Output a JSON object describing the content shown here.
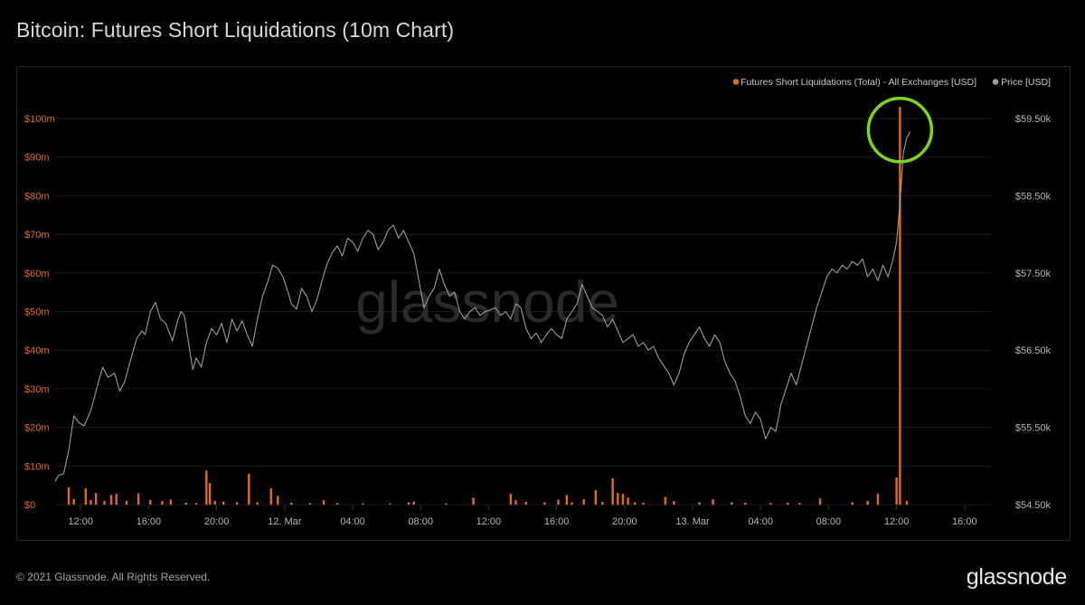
{
  "title": "Bitcoin: Futures Short Liquidations (10m Chart)",
  "footer": {
    "copyright": "© 2021 Glassnode. All Rights Reserved.",
    "logo": "glassnode"
  },
  "watermark": "glassnode",
  "colors": {
    "liquidations": "#e06a1f",
    "price": "#9c9c9c",
    "axis_left_text": "#e06a1f",
    "axis_right_text": "#b5b5b5",
    "grid": "#1a1a1a",
    "highlight_circle": "#7ed321"
  },
  "chart_data": {
    "type": "bar",
    "title": "Bitcoin: Futures Short Liquidations (10m Chart)",
    "legend": {
      "placement": "top-right",
      "entries": [
        {
          "name": "Futures Short Liquidations (Total) - All Exchanges [USD]",
          "color": "#e06a1f"
        },
        {
          "name": "Price [USD]",
          "color": "#9c9c9c"
        }
      ]
    },
    "grid": true,
    "x_axis": {
      "ticks": [
        "12:00",
        "16:00",
        "20:00",
        "12. Mar",
        "04:00",
        "08:00",
        "12:00",
        "16:00",
        "20:00",
        "13. Mar",
        "04:00",
        "08:00",
        "12:00",
        "16:00"
      ],
      "tick_hours": [
        12,
        16,
        20,
        24,
        28,
        32,
        36,
        40,
        44,
        48,
        52,
        56,
        60,
        64
      ],
      "range_hours": [
        10.5,
        65.5
      ]
    },
    "y_left": {
      "label": "",
      "ticks": [
        "$0",
        "$10m",
        "$20m",
        "$30m",
        "$40m",
        "$50m",
        "$60m",
        "$70m",
        "$80m",
        "$90m",
        "$100m"
      ],
      "tick_values": [
        0,
        10,
        20,
        30,
        40,
        50,
        60,
        70,
        80,
        90,
        100
      ],
      "unit": "million USD",
      "range": [
        0,
        100
      ]
    },
    "y_right": {
      "label": "",
      "ticks": [
        "$54.50k",
        "$55.50k",
        "$56.50k",
        "$57.50k",
        "$58.50k",
        "$59.50k"
      ],
      "tick_values": [
        54500,
        55500,
        56500,
        57500,
        58500,
        59500
      ],
      "range": [
        54500,
        59500
      ]
    },
    "annotations": [
      {
        "type": "circle",
        "color": "#7ed321",
        "at_hour": 60.2,
        "at_liquidation": 97
      }
    ],
    "series": [
      {
        "name": "Futures Short Liquidations (Total) - All Exchanges [USD]",
        "type": "bar",
        "unit": "million USD",
        "points": [
          [
            11.3,
            4.5
          ],
          [
            11.6,
            1.5
          ],
          [
            12.3,
            4.2
          ],
          [
            12.6,
            1.2
          ],
          [
            12.9,
            3.0
          ],
          [
            13.4,
            1.0
          ],
          [
            13.8,
            2.5
          ],
          [
            14.1,
            2.8
          ],
          [
            14.7,
            1.0
          ],
          [
            15.4,
            2.9
          ],
          [
            16.1,
            1.2
          ],
          [
            16.8,
            0.9
          ],
          [
            17.3,
            1.3
          ],
          [
            18.2,
            0.5
          ],
          [
            18.8,
            0.4
          ],
          [
            19.4,
            8.8
          ],
          [
            19.6,
            5.6
          ],
          [
            19.9,
            1.0
          ],
          [
            20.4,
            0.8
          ],
          [
            21.2,
            0.6
          ],
          [
            21.9,
            8.0
          ],
          [
            22.4,
            0.6
          ],
          [
            23.2,
            4.2
          ],
          [
            23.6,
            2.3
          ],
          [
            24.4,
            0.5
          ],
          [
            25.5,
            0.4
          ],
          [
            26.3,
            1.2
          ],
          [
            27.1,
            0.4
          ],
          [
            28.6,
            0.3
          ],
          [
            30.2,
            0.3
          ],
          [
            31.3,
            0.6
          ],
          [
            31.6,
            0.8
          ],
          [
            33.5,
            0.3
          ],
          [
            35.1,
            1.8
          ],
          [
            37.3,
            2.8
          ],
          [
            37.6,
            1.2
          ],
          [
            38.2,
            0.7
          ],
          [
            39.3,
            0.6
          ],
          [
            40.1,
            1.3
          ],
          [
            40.6,
            2.5
          ],
          [
            40.9,
            0.6
          ],
          [
            41.6,
            1.4
          ],
          [
            42.3,
            3.8
          ],
          [
            42.7,
            0.7
          ],
          [
            43.3,
            6.8
          ],
          [
            43.6,
            3.0
          ],
          [
            43.9,
            2.8
          ],
          [
            44.2,
            1.8
          ],
          [
            44.6,
            0.6
          ],
          [
            45.1,
            0.5
          ],
          [
            46.4,
            2.0
          ],
          [
            46.9,
            0.9
          ],
          [
            48.4,
            0.6
          ],
          [
            49.2,
            1.4
          ],
          [
            50.3,
            0.6
          ],
          [
            51.1,
            0.5
          ],
          [
            52.6,
            0.4
          ],
          [
            53.6,
            0.5
          ],
          [
            54.3,
            0.4
          ],
          [
            55.5,
            1.6
          ],
          [
            57.4,
            0.6
          ],
          [
            58.3,
            1.0
          ],
          [
            58.9,
            2.8
          ],
          [
            60.0,
            7.0
          ],
          [
            60.2,
            103
          ],
          [
            60.6,
            1.0
          ]
        ]
      },
      {
        "name": "Price [USD]",
        "type": "line",
        "points": [
          [
            10.5,
            54800
          ],
          [
            10.7,
            54880
          ],
          [
            11.0,
            54900
          ],
          [
            11.3,
            55200
          ],
          [
            11.6,
            55650
          ],
          [
            11.9,
            55560
          ],
          [
            12.2,
            55520
          ],
          [
            12.6,
            55720
          ],
          [
            13.0,
            56050
          ],
          [
            13.3,
            56280
          ],
          [
            13.6,
            56150
          ],
          [
            14.0,
            56200
          ],
          [
            14.3,
            55970
          ],
          [
            14.6,
            56100
          ],
          [
            15.0,
            56420
          ],
          [
            15.3,
            56650
          ],
          [
            15.6,
            56750
          ],
          [
            15.8,
            56700
          ],
          [
            16.1,
            57000
          ],
          [
            16.4,
            57120
          ],
          [
            16.7,
            56900
          ],
          [
            17.0,
            56850
          ],
          [
            17.4,
            56620
          ],
          [
            17.7,
            56880
          ],
          [
            17.9,
            57000
          ],
          [
            18.1,
            56950
          ],
          [
            18.4,
            56520
          ],
          [
            18.6,
            56250
          ],
          [
            18.8,
            56400
          ],
          [
            19.1,
            56280
          ],
          [
            19.4,
            56600
          ],
          [
            19.7,
            56780
          ],
          [
            20.0,
            56700
          ],
          [
            20.3,
            56850
          ],
          [
            20.6,
            56600
          ],
          [
            20.9,
            56900
          ],
          [
            21.2,
            56750
          ],
          [
            21.5,
            56880
          ],
          [
            21.8,
            56700
          ],
          [
            22.1,
            56550
          ],
          [
            22.4,
            56900
          ],
          [
            22.7,
            57200
          ],
          [
            23.0,
            57380
          ],
          [
            23.3,
            57600
          ],
          [
            23.6,
            57560
          ],
          [
            23.9,
            57450
          ],
          [
            24.2,
            57250
          ],
          [
            24.4,
            57100
          ],
          [
            24.7,
            57030
          ],
          [
            25.0,
            57300
          ],
          [
            25.3,
            57200
          ],
          [
            25.6,
            57000
          ],
          [
            25.9,
            57150
          ],
          [
            26.2,
            57400
          ],
          [
            26.5,
            57620
          ],
          [
            26.8,
            57760
          ],
          [
            27.1,
            57850
          ],
          [
            27.4,
            57720
          ],
          [
            27.7,
            57950
          ],
          [
            28.0,
            57900
          ],
          [
            28.3,
            57780
          ],
          [
            28.6,
            57950
          ],
          [
            28.9,
            58050
          ],
          [
            29.2,
            58000
          ],
          [
            29.5,
            57800
          ],
          [
            29.8,
            57900
          ],
          [
            30.1,
            58060
          ],
          [
            30.4,
            58120
          ],
          [
            30.7,
            57950
          ],
          [
            31.0,
            58050
          ],
          [
            31.3,
            57900
          ],
          [
            31.6,
            57750
          ],
          [
            31.9,
            57400
          ],
          [
            32.2,
            57050
          ],
          [
            32.5,
            57200
          ],
          [
            32.8,
            57300
          ],
          [
            33.1,
            57550
          ],
          [
            33.4,
            57350
          ],
          [
            33.7,
            57200
          ],
          [
            34.0,
            57250
          ],
          [
            34.3,
            57000
          ],
          [
            34.6,
            56900
          ],
          [
            34.9,
            57000
          ],
          [
            35.2,
            57050
          ],
          [
            35.5,
            56950
          ],
          [
            35.8,
            57000
          ],
          [
            36.1,
            57020
          ],
          [
            36.4,
            57050
          ],
          [
            36.7,
            56950
          ],
          [
            37.0,
            57000
          ],
          [
            37.3,
            56900
          ],
          [
            37.6,
            57100
          ],
          [
            37.9,
            57050
          ],
          [
            38.2,
            56780
          ],
          [
            38.5,
            56650
          ],
          [
            38.8,
            56720
          ],
          [
            39.1,
            56600
          ],
          [
            39.4,
            56700
          ],
          [
            39.7,
            56780
          ],
          [
            40.0,
            56700
          ],
          [
            40.3,
            56650
          ],
          [
            40.6,
            56900
          ],
          [
            40.9,
            57000
          ],
          [
            41.2,
            57100
          ],
          [
            41.5,
            57350
          ],
          [
            41.8,
            57200
          ],
          [
            42.1,
            57050
          ],
          [
            42.4,
            57000
          ],
          [
            42.7,
            56950
          ],
          [
            43.0,
            56800
          ],
          [
            43.3,
            56900
          ],
          [
            43.6,
            56750
          ],
          [
            43.9,
            56600
          ],
          [
            44.2,
            56650
          ],
          [
            44.5,
            56700
          ],
          [
            44.8,
            56550
          ],
          [
            45.1,
            56600
          ],
          [
            45.4,
            56500
          ],
          [
            45.7,
            56550
          ],
          [
            46.0,
            56400
          ],
          [
            46.3,
            56300
          ],
          [
            46.6,
            56200
          ],
          [
            46.9,
            56050
          ],
          [
            47.2,
            56200
          ],
          [
            47.5,
            56450
          ],
          [
            47.8,
            56600
          ],
          [
            48.1,
            56700
          ],
          [
            48.4,
            56800
          ],
          [
            48.7,
            56650
          ],
          [
            49.0,
            56550
          ],
          [
            49.3,
            56700
          ],
          [
            49.6,
            56600
          ],
          [
            49.9,
            56350
          ],
          [
            50.2,
            56200
          ],
          [
            50.5,
            56100
          ],
          [
            50.8,
            55900
          ],
          [
            51.1,
            55650
          ],
          [
            51.4,
            55550
          ],
          [
            51.7,
            55700
          ],
          [
            52.0,
            55600
          ],
          [
            52.3,
            55350
          ],
          [
            52.6,
            55500
          ],
          [
            52.9,
            55450
          ],
          [
            53.2,
            55800
          ],
          [
            53.5,
            56000
          ],
          [
            53.8,
            56200
          ],
          [
            54.1,
            56050
          ],
          [
            54.4,
            56300
          ],
          [
            54.7,
            56550
          ],
          [
            55.0,
            56800
          ],
          [
            55.3,
            57050
          ],
          [
            55.6,
            57250
          ],
          [
            55.9,
            57450
          ],
          [
            56.2,
            57550
          ],
          [
            56.5,
            57500
          ],
          [
            56.8,
            57600
          ],
          [
            57.1,
            57550
          ],
          [
            57.4,
            57650
          ],
          [
            57.7,
            57600
          ],
          [
            58.0,
            57680
          ],
          [
            58.3,
            57450
          ],
          [
            58.6,
            57550
          ],
          [
            58.9,
            57400
          ],
          [
            59.2,
            57600
          ],
          [
            59.5,
            57450
          ],
          [
            59.8,
            57680
          ],
          [
            60.0,
            57900
          ],
          [
            60.2,
            58400
          ],
          [
            60.4,
            59050
          ],
          [
            60.6,
            59250
          ],
          [
            60.8,
            59330
          ]
        ]
      }
    ]
  }
}
